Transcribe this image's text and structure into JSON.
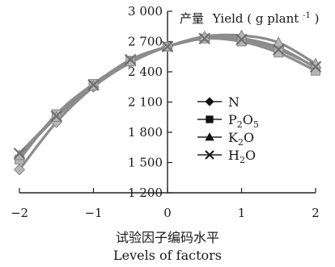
{
  "chart_data": {
    "type": "line",
    "x": [
      -2,
      -1.5,
      -1,
      -0.5,
      0,
      0.5,
      1,
      1.5,
      2
    ],
    "xlabel_cn": "试验因子编码水平",
    "xlabel_en": "Levels of factors",
    "ylabel_cn": "产量",
    "ylabel_en": "Yield ( g plant",
    "ylabel_sup": "-1",
    "ylabel_close": ")",
    "xlim": [
      -2,
      2
    ],
    "ylim": [
      1200,
      3000
    ],
    "x_ticks": [
      -2,
      -1,
      0,
      1,
      2
    ],
    "x_tick_labels": [
      "−2",
      "−1",
      "0",
      "1",
      "2"
    ],
    "y_ticks": [
      1200,
      1500,
      1800,
      2100,
      2400,
      2700,
      3000
    ],
    "y_tick_labels": [
      "1 200",
      "1 500",
      "1 800",
      "2 100",
      "2 400",
      "2 700",
      "3 000"
    ],
    "line_color": "#8c8c8c",
    "marker_color": "#b5b5b5",
    "series": [
      {
        "name_main": "N",
        "name_sub": "",
        "name_tail": "",
        "marker": "diamond",
        "values": [
          1430,
          1900,
          2250,
          2490,
          2650,
          2740,
          2730,
          2640,
          2440
        ]
      },
      {
        "name_main": "P",
        "name_sub": "2",
        "name_tail": "O",
        "name_sub2": "5",
        "marker": "square",
        "values": [
          1530,
          1980,
          2280,
          2510,
          2650,
          2730,
          2700,
          2590,
          2410
        ]
      },
      {
        "name_main": "K",
        "name_sub": "2",
        "name_tail": "O",
        "name_sub2": "",
        "marker": "triangle",
        "values": [
          1570,
          1950,
          2260,
          2500,
          2650,
          2750,
          2760,
          2690,
          2480
        ]
      },
      {
        "name_main": "H",
        "name_sub": "2",
        "name_tail": "O",
        "name_sub2": "",
        "marker": "cross",
        "values": [
          1590,
          1960,
          2270,
          2520,
          2650,
          2730,
          2720,
          2620,
          2450
        ]
      }
    ]
  }
}
